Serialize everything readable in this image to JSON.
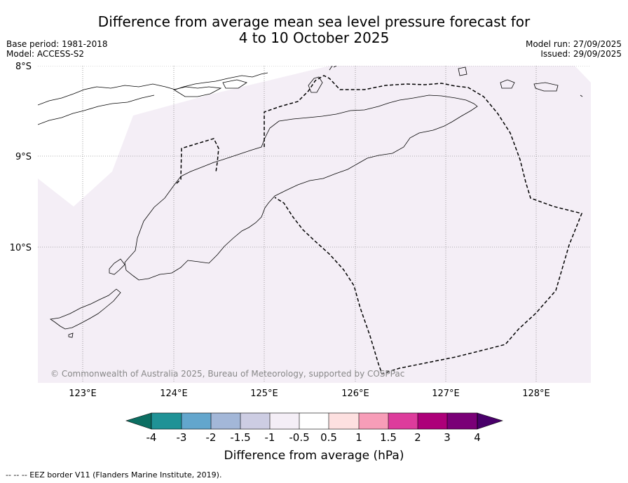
{
  "header": {
    "title_line1": "Difference from average mean sea level pressure forecast for",
    "title_line2": "4 to 10 October 2025",
    "base_period": "Base period: 1981-2018",
    "model": "Model: ACCESS-S2",
    "model_run": "Model run: 27/09/2025",
    "issued": "Issued: 29/09/2025"
  },
  "map": {
    "lat_labels": [
      "8°S",
      "9°S",
      "10°S"
    ],
    "lon_labels": [
      "123°E",
      "124°E",
      "125°E",
      "126°E",
      "127°E",
      "128°E"
    ],
    "copyright": "© Commonwealth of Australia 2025, Bureau of Meteorology, supported by COSPPac",
    "fill_color": "#f4eef6"
  },
  "colorbar": {
    "ticks": [
      "-4",
      "-3",
      "-2",
      "-1.5",
      "-1",
      "-0.5",
      "0.5",
      "1",
      "1.5",
      "2",
      "3",
      "4"
    ],
    "colors": [
      "#0c6e62",
      "#1f9296",
      "#63a6cd",
      "#a3b7d8",
      "#cdcde3",
      "#f4eef6",
      "#ffffff",
      "#fde0e0",
      "#f79db8",
      "#dd3c9c",
      "#ad0079",
      "#7a0077",
      "#49006a"
    ],
    "label": "Difference from average (hPa)"
  },
  "footnote": "--  --  -- EEZ border V11 (Flanders Marine Institute, 2019)."
}
